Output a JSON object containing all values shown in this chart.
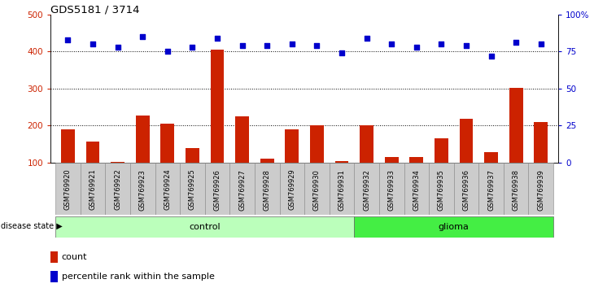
{
  "title": "GDS5181 / 3714",
  "samples": [
    "GSM769920",
    "GSM769921",
    "GSM769922",
    "GSM769923",
    "GSM769924",
    "GSM769925",
    "GSM769926",
    "GSM769927",
    "GSM769928",
    "GSM769929",
    "GSM769930",
    "GSM769931",
    "GSM769932",
    "GSM769933",
    "GSM769934",
    "GSM769935",
    "GSM769936",
    "GSM769937",
    "GSM769938",
    "GSM769939"
  ],
  "counts": [
    190,
    158,
    103,
    228,
    205,
    140,
    405,
    225,
    110,
    190,
    200,
    105,
    202,
    115,
    115,
    165,
    218,
    128,
    302,
    210
  ],
  "percentiles": [
    83,
    80,
    78,
    85,
    75,
    78,
    84,
    79,
    79,
    80,
    79,
    74,
    84,
    80,
    78,
    80,
    79,
    72,
    81,
    80
  ],
  "n_control": 12,
  "ylim_left": [
    100,
    500
  ],
  "ylim_right": [
    0,
    100
  ],
  "yticks_left": [
    100,
    200,
    300,
    400,
    500
  ],
  "yticks_right": [
    0,
    25,
    50,
    75,
    100
  ],
  "ytick_labels_right": [
    "0",
    "25",
    "50",
    "75",
    "100%"
  ],
  "bar_color": "#CC2200",
  "dot_color": "#0000CC",
  "bg_xticklabels": "#CCCCCC",
  "control_color": "#BBFFBB",
  "glioma_color": "#44EE44",
  "control_label": "control",
  "glioma_label": "glioma",
  "disease_state_label": "disease state",
  "legend_count": "count",
  "legend_percentile": "percentile rank within the sample"
}
